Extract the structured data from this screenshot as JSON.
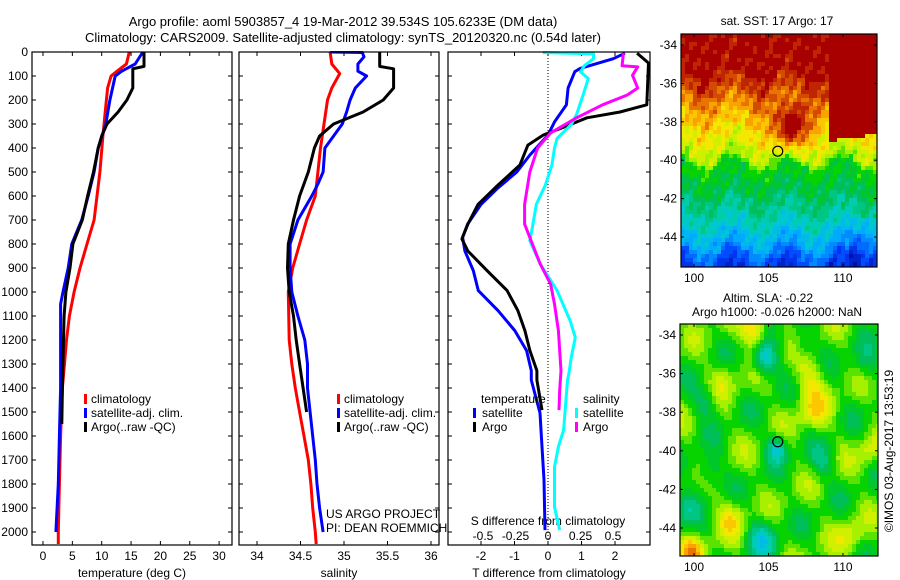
{
  "header": {
    "title_line1": "Argo profile: aoml 5903857_4 19-Mar-2012 39.534S 105.6233E (DM data)",
    "title_line2": "Climatology: CARS2009. Satellite-adjusted climatology: synTS_20120320.nc (0.54d later)"
  },
  "credit": "©IMOS 03-Aug-2017 13:53:19",
  "project": {
    "line1": "US ARGO PROJECT",
    "line2": "PI: DEAN ROEMMICH"
  },
  "colors": {
    "climatology": "#ff0000",
    "satellite": "#0000ff",
    "argo": "#000000",
    "sal_satellite": "#00ffff",
    "sal_argo": "#ff00ff"
  },
  "legend_profiles": [
    "climatology",
    "satellite-adj. clim.",
    "Argo(..raw -QC)"
  ],
  "legend_diff": {
    "temperature_header": "temperature",
    "salinity_header": "salinity",
    "satellite": "satellite",
    "argo": "Argo"
  },
  "chart_data": [
    {
      "type": "line",
      "title": "",
      "xlabel": "temperature (deg C)",
      "ylabel": "",
      "xlim": [
        -2,
        32
      ],
      "ylim": [
        2050,
        0
      ],
      "xticks": [
        "0",
        "5",
        "10",
        "15",
        "20",
        "25",
        "30"
      ],
      "yticks": [
        "0",
        "100",
        "200",
        "300",
        "400",
        "500",
        "600",
        "700",
        "800",
        "900",
        "1000",
        "1100",
        "1200",
        "1300",
        "1400",
        "1500",
        "1600",
        "1700",
        "1800",
        "1900",
        "2000"
      ],
      "series": [
        {
          "name": "climatology",
          "points": [
            [
              14.7,
              0
            ],
            [
              14.2,
              50
            ],
            [
              12.6,
              80
            ],
            [
              11.6,
              100
            ],
            [
              11.0,
              150
            ],
            [
              10.6,
              250
            ],
            [
              10.2,
              350
            ],
            [
              9.7,
              500
            ],
            [
              8.7,
              700
            ],
            [
              7.5,
              800
            ],
            [
              6.3,
              900
            ],
            [
              5.3,
              1000
            ],
            [
              4.5,
              1100
            ],
            [
              4.0,
              1200
            ],
            [
              3.3,
              1400
            ],
            [
              3.0,
              1600
            ],
            [
              2.8,
              1800
            ],
            [
              2.6,
              2000
            ],
            [
              2.6,
              2050
            ]
          ]
        },
        {
          "name": "satellite-adj. clim.",
          "points": [
            [
              17.0,
              0
            ],
            [
              15.7,
              50
            ],
            [
              13.4,
              80
            ],
            [
              12.3,
              100
            ],
            [
              11.4,
              200
            ],
            [
              10.7,
              300
            ],
            [
              9.4,
              400
            ],
            [
              8.7,
              500
            ],
            [
              7.7,
              600
            ],
            [
              6.6,
              700
            ],
            [
              4.9,
              800
            ],
            [
              4.3,
              900
            ],
            [
              3.4,
              1000
            ],
            [
              3.0,
              1050
            ],
            [
              3.0,
              1400
            ],
            [
              2.8,
              1600
            ],
            [
              2.6,
              1800
            ],
            [
              2.3,
              1950
            ],
            [
              2.2,
              2000
            ]
          ]
        },
        {
          "name": "Argo(..raw -QC)",
          "points": [
            [
              17.2,
              0
            ],
            [
              17.2,
              60
            ],
            [
              15.3,
              70
            ],
            [
              15.3,
              150
            ],
            [
              14.3,
              200
            ],
            [
              12.8,
              250
            ],
            [
              10.9,
              300
            ],
            [
              10.0,
              350
            ],
            [
              9.4,
              400
            ],
            [
              8.6,
              500
            ],
            [
              7.6,
              600
            ],
            [
              6.7,
              700
            ],
            [
              5.1,
              800
            ],
            [
              4.6,
              900
            ],
            [
              3.9,
              1000
            ],
            [
              3.6,
              1100
            ],
            [
              3.5,
              1200
            ],
            [
              3.3,
              1400
            ],
            [
              3.2,
              1550
            ]
          ]
        }
      ]
    },
    {
      "type": "line",
      "title": "",
      "xlabel": "salinity",
      "ylabel": "",
      "xlim": [
        33.8,
        36.1
      ],
      "ylim": [
        2050,
        0
      ],
      "xticks": [
        "34",
        "34.5",
        "35",
        "35.5",
        "36"
      ],
      "series": [
        {
          "name": "climatology",
          "points": [
            [
              34.84,
              0
            ],
            [
              34.86,
              50
            ],
            [
              34.95,
              90
            ],
            [
              34.86,
              150
            ],
            [
              34.81,
              200
            ],
            [
              34.77,
              300
            ],
            [
              34.73,
              400
            ],
            [
              34.7,
              500
            ],
            [
              34.67,
              600
            ],
            [
              34.57,
              700
            ],
            [
              34.49,
              800
            ],
            [
              34.41,
              900
            ],
            [
              34.36,
              1000
            ],
            [
              34.37,
              1200
            ],
            [
              34.4,
              1300
            ],
            [
              34.44,
              1400
            ],
            [
              34.49,
              1500
            ],
            [
              34.54,
              1600
            ],
            [
              34.59,
              1700
            ],
            [
              34.62,
              1800
            ],
            [
              34.64,
              1900
            ],
            [
              34.67,
              2000
            ],
            [
              34.68,
              2050
            ]
          ]
        },
        {
          "name": "satellite-adj. clim.",
          "points": [
            [
              34.84,
              0
            ],
            [
              35.21,
              2
            ],
            [
              35.23,
              20
            ],
            [
              35.16,
              50
            ],
            [
              35.16,
              80
            ],
            [
              35.26,
              100
            ],
            [
              35.13,
              150
            ],
            [
              35.07,
              200
            ],
            [
              35.03,
              250
            ],
            [
              34.98,
              300
            ],
            [
              34.78,
              400
            ],
            [
              34.76,
              500
            ],
            [
              34.7,
              550
            ],
            [
              34.63,
              600
            ],
            [
              34.47,
              700
            ],
            [
              34.38,
              800
            ],
            [
              34.38,
              900
            ],
            [
              34.4,
              1000
            ],
            [
              34.47,
              1100
            ],
            [
              34.55,
              1200
            ],
            [
              34.58,
              1300
            ],
            [
              34.58,
              1400
            ],
            [
              34.61,
              1500
            ],
            [
              34.64,
              1600
            ],
            [
              34.67,
              1700
            ],
            [
              34.69,
              1800
            ],
            [
              34.72,
              1900
            ],
            [
              34.76,
              2000
            ]
          ]
        },
        {
          "name": "Argo(..raw -QC)",
          "points": [
            [
              35.41,
              0
            ],
            [
              35.41,
              60
            ],
            [
              35.57,
              70
            ],
            [
              35.57,
              150
            ],
            [
              35.45,
              200
            ],
            [
              35.22,
              250
            ],
            [
              34.88,
              300
            ],
            [
              34.72,
              350
            ],
            [
              34.66,
              400
            ],
            [
              34.59,
              500
            ],
            [
              34.49,
              600
            ],
            [
              34.42,
              700
            ],
            [
              34.36,
              800
            ],
            [
              34.35,
              900
            ],
            [
              34.37,
              1000
            ],
            [
              34.42,
              1100
            ],
            [
              34.45,
              1200
            ],
            [
              34.49,
              1300
            ],
            [
              34.53,
              1400
            ],
            [
              34.57,
              1500
            ]
          ]
        }
      ]
    },
    {
      "type": "line",
      "title": "S difference from climatology",
      "xlabel": "T difference from climatology",
      "ylabel": "",
      "xlim": [
        -3,
        3
      ],
      "ylim": [
        2050,
        0
      ],
      "xticks": [
        "-2",
        "-1",
        "0",
        "1",
        "2"
      ],
      "secondary_xticks": [
        "-0.5",
        "-0.25",
        "0",
        "0.25",
        "0.5"
      ],
      "series": [
        {
          "name": "temperature satellite",
          "axis": "T",
          "points": [
            [
              2.3,
              5
            ],
            [
              1.95,
              28
            ],
            [
              0.95,
              69
            ],
            [
              0.8,
              82
            ],
            [
              0.6,
              150
            ],
            [
              0.55,
              220
            ],
            [
              0.2,
              290
            ],
            [
              0,
              346
            ],
            [
              -0.54,
              429
            ],
            [
              -0.93,
              500
            ],
            [
              -1.5,
              567
            ],
            [
              -2.0,
              635
            ],
            [
              -2.4,
              717
            ],
            [
              -2.55,
              772
            ],
            [
              -2.48,
              829
            ],
            [
              -2.23,
              911
            ],
            [
              -2.08,
              994
            ],
            [
              -1.49,
              1078
            ],
            [
              -0.99,
              1161
            ],
            [
              -0.64,
              1244
            ],
            [
              -0.5,
              1328
            ],
            [
              -0.5,
              1367
            ],
            [
              -0.24,
              1504
            ],
            [
              -0.18,
              1645
            ],
            [
              -0.12,
              1783
            ],
            [
              -0.09,
              1992
            ]
          ]
        },
        {
          "name": "temperature Argo",
          "axis": "T",
          "points": [
            [
              2.66,
              5
            ],
            [
              3.0,
              46
            ],
            [
              2.95,
              220
            ],
            [
              2.15,
              250
            ],
            [
              1.16,
              274
            ],
            [
              0.36,
              319
            ],
            [
              -0.14,
              346
            ],
            [
              -0.6,
              388
            ],
            [
              -0.84,
              471
            ],
            [
              -1.49,
              554
            ],
            [
              -2.09,
              635
            ],
            [
              -2.39,
              717
            ],
            [
              -2.57,
              779
            ],
            [
              -2.39,
              829
            ],
            [
              -1.82,
              911
            ],
            [
              -1.22,
              994
            ],
            [
              -0.9,
              1078
            ],
            [
              -0.69,
              1161
            ],
            [
              -0.54,
              1244
            ],
            [
              -0.33,
              1328
            ],
            [
              -0.33,
              1367
            ],
            [
              -0.18,
              1492
            ]
          ]
        },
        {
          "name": "salinity satellite",
          "axis": "S",
          "points": [
            [
              -0.04,
              2
            ],
            [
              0.35,
              8
            ],
            [
              0.35,
              28
            ],
            [
              0.28,
              57
            ],
            [
              0.25,
              83
            ],
            [
              0.31,
              111
            ],
            [
              0.27,
              179
            ],
            [
              0.22,
              260
            ],
            [
              0.18,
              301
            ],
            [
              0.07,
              360
            ],
            [
              0.05,
              400
            ],
            [
              0.03,
              471
            ],
            [
              -0.02,
              554
            ],
            [
              -0.09,
              635
            ],
            [
              -0.12,
              731
            ],
            [
              -0.14,
              786
            ],
            [
              -0.06,
              883
            ],
            [
              0.07,
              994
            ],
            [
              0.17,
              1119
            ],
            [
              0.21,
              1189
            ],
            [
              0.18,
              1269
            ],
            [
              0.16,
              1342
            ],
            [
              0.15,
              1367
            ],
            [
              0.12,
              1575
            ],
            [
              0.08,
              1645
            ],
            [
              0.05,
              1729
            ],
            [
              0.05,
              1896
            ],
            [
              0.09,
              1992
            ]
          ]
        },
        {
          "name": "salinity Argo",
          "axis": "S",
          "points": [
            [
              0.58,
              5
            ],
            [
              0.57,
              57
            ],
            [
              0.69,
              62
            ],
            [
              0.65,
              97
            ],
            [
              0.69,
              150
            ],
            [
              0.61,
              179
            ],
            [
              0.42,
              220
            ],
            [
              0.22,
              274
            ],
            [
              0.02,
              337
            ],
            [
              -0.08,
              400
            ],
            [
              -0.14,
              500
            ],
            [
              -0.18,
              635
            ],
            [
              -0.18,
              717
            ],
            [
              -0.12,
              800
            ],
            [
              -0.06,
              883
            ],
            [
              0.02,
              967
            ],
            [
              0.05,
              1050
            ],
            [
              0.08,
              1161
            ],
            [
              0.1,
              1328
            ],
            [
              0.09,
              1408
            ],
            [
              0.085,
              1492
            ]
          ]
        }
      ]
    }
  ],
  "maps": [
    {
      "title": "sat. SST: 17 Argo: 17",
      "lat_ticks": [
        "-34",
        "-36",
        "-38",
        "-40",
        "-42",
        "-44"
      ],
      "lon_ticks": [
        "100",
        "105",
        "110"
      ],
      "argo_position": {
        "lon": 105.62,
        "lat": -39.53
      }
    },
    {
      "title_line1": "Altim. SLA: -0.22",
      "title_line2": "Argo h1000: -0.026 h2000: NaN",
      "lat_ticks": [
        "-34",
        "-36",
        "-38",
        "-40",
        "-42",
        "-44"
      ],
      "lon_ticks": [
        "100",
        "105",
        "110"
      ],
      "argo_position": {
        "lon": 105.62,
        "lat": -39.53
      }
    }
  ]
}
